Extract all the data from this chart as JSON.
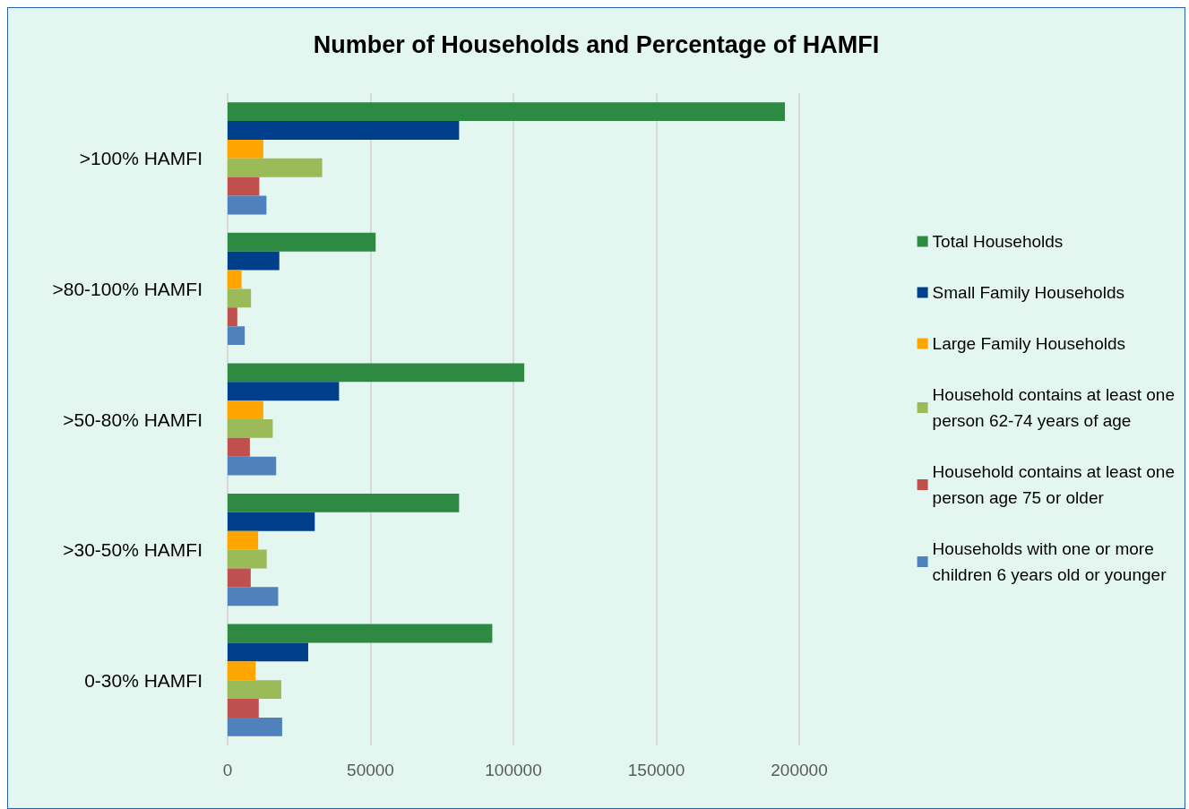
{
  "chart_data": {
    "type": "bar",
    "orientation": "horizontal",
    "title": "Number of Households and Percentage of HAMFI",
    "categories": [
      ">100% HAMFI",
      ">80-100% HAMFI",
      ">50-80% HAMFI",
      ">30-50% HAMFI",
      "0-30% HAMFI"
    ],
    "series": [
      {
        "name": "Total Households",
        "color": "#2e8a42",
        "values": [
          195000,
          51800,
          103800,
          81000,
          92600
        ]
      },
      {
        "name": "Small Family Households",
        "color": "#003f8a",
        "values": [
          81000,
          18100,
          39000,
          30500,
          28200
        ]
      },
      {
        "name": "Large Family Households",
        "color": "#ffa500",
        "values": [
          12500,
          4900,
          12500,
          10700,
          9800
        ]
      },
      {
        "name": "Household contains at least one person 62-74 years of age",
        "color": "#9bbb59",
        "values": [
          33100,
          8200,
          15800,
          13700,
          18800
        ]
      },
      {
        "name": "Household contains at least one person age 75 or older",
        "color": "#c0504d",
        "values": [
          11100,
          3400,
          7800,
          8100,
          10900
        ]
      },
      {
        "name": "Households with one or more children 6 years old or younger",
        "color": "#4f81bd",
        "values": [
          13600,
          6000,
          17000,
          17700,
          19100
        ]
      }
    ],
    "xlim": [
      0,
      200000
    ],
    "xticks": [
      0,
      50000,
      100000,
      150000,
      200000
    ],
    "grid": "x",
    "legend": "right"
  }
}
